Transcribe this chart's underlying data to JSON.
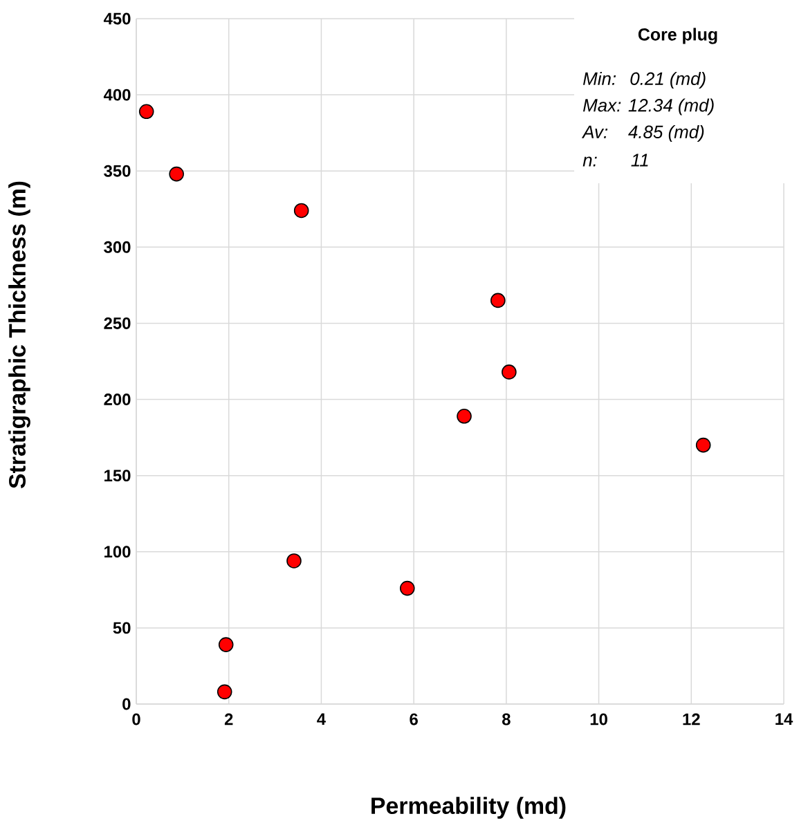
{
  "chart_data": {
    "type": "scatter",
    "xlabel": "Permeability (md)",
    "ylabel": "Stratigraphic Thickness (m)",
    "x": [
      0.22,
      0.87,
      3.57,
      7.82,
      8.06,
      7.09,
      12.26,
      3.41,
      5.86,
      1.94,
      1.91
    ],
    "series": [
      {
        "color": "#ff0000",
        "values": [
          389,
          348,
          324,
          265,
          218,
          189,
          170,
          94,
          76,
          39,
          8
        ]
      }
    ],
    "xlim": [
      0,
      14
    ],
    "ylim": [
      0,
      450
    ],
    "xticks": [
      0,
      2,
      4,
      6,
      8,
      10,
      12,
      14
    ],
    "yticks": [
      0,
      50,
      100,
      150,
      200,
      250,
      300,
      350,
      400,
      450
    ],
    "grid": true,
    "marker": "circle",
    "annotations": [
      "Core plug",
      "Min:  0.21 (md)",
      "Max: 12.34 (md)",
      "Av:   4.85 (md)",
      "n:     11"
    ]
  }
}
